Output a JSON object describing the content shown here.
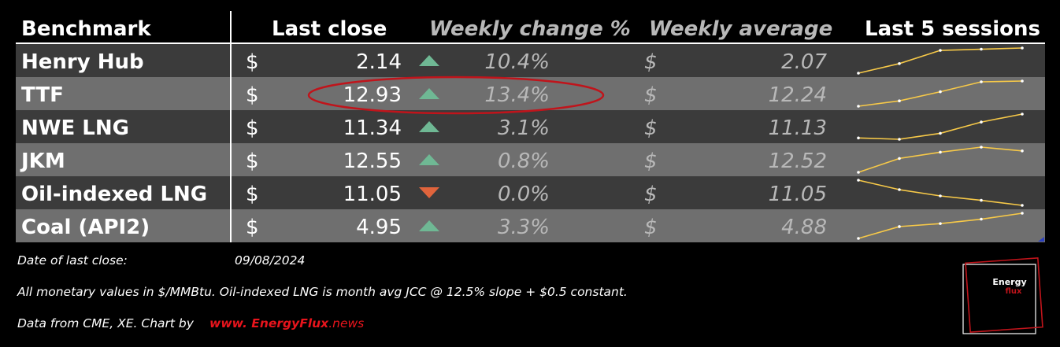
{
  "header": {
    "benchmark": "Benchmark",
    "last_close": "Last close",
    "weekly_change": "Weekly change %",
    "weekly_average": "Weekly average",
    "last5": "Last 5 sessions"
  },
  "colors": {
    "up_arrow": "#6fb894",
    "down_arrow": "#e0643c",
    "sparkline": "#f7c948",
    "highlight_ellipse": "#c0141b",
    "row_dark": "#3b3b3b",
    "row_light": "#6f6f6f",
    "link_red": "#e8141c"
  },
  "chart_data": {
    "type": "table",
    "columns": [
      "Benchmark",
      "Last close",
      "Weekly change %",
      "Weekly average",
      "Last 5 sessions"
    ],
    "rows": [
      {
        "name": "Henry Hub",
        "currency": "$",
        "close": "2.14",
        "direction": "up",
        "change": "10.4%",
        "avg_currency": "$",
        "avg": "2.07",
        "spark": [
          1.94,
          2.02,
          2.13,
          2.14,
          2.15
        ]
      },
      {
        "name": "TTF",
        "currency": "$",
        "close": "12.93",
        "direction": "up",
        "change": "13.4%",
        "avg_currency": "$",
        "avg": "12.24",
        "spark": [
          11.55,
          11.82,
          12.28,
          12.78,
          12.82
        ]
      },
      {
        "name": "NWE LNG",
        "currency": "$",
        "close": "11.34",
        "direction": "up",
        "change": "3.1%",
        "avg_currency": "$",
        "avg": "11.13",
        "spark": [
          10.98,
          10.96,
          11.05,
          11.22,
          11.34
        ]
      },
      {
        "name": "JKM",
        "currency": "$",
        "close": "12.55",
        "direction": "up",
        "change": "0.8%",
        "avg_currency": "$",
        "avg": "12.52",
        "spark": [
          12.41,
          12.52,
          12.57,
          12.61,
          12.58
        ]
      },
      {
        "name": "Oil-indexed LNG",
        "currency": "$",
        "close": "11.05",
        "direction": "down",
        "change": "0.0%",
        "avg_currency": "$",
        "avg": "11.05",
        "spark": [
          11.3,
          11.15,
          11.05,
          10.98,
          10.9
        ]
      },
      {
        "name": "Coal (API2)",
        "currency": "$",
        "close": "4.95",
        "direction": "up",
        "change": "3.3%",
        "avg_currency": "$",
        "avg": "4.88",
        "spark": [
          4.78,
          4.86,
          4.88,
          4.91,
          4.95
        ]
      }
    ]
  },
  "footer": {
    "date_label": "Date of last close:",
    "date": "09/08/2024",
    "note": "All monetary values in $/MMBtu. Oil-indexed LNG is month avg JCC @ 12.5% slope + $0.5 constant.",
    "source": "Data from CME, XE. Chart by",
    "web_prefix": "www.",
    "web_domain": "EnergyFlux",
    "web_tld": ".news"
  },
  "logo": {
    "line1": "Energy",
    "line2": "flux"
  }
}
